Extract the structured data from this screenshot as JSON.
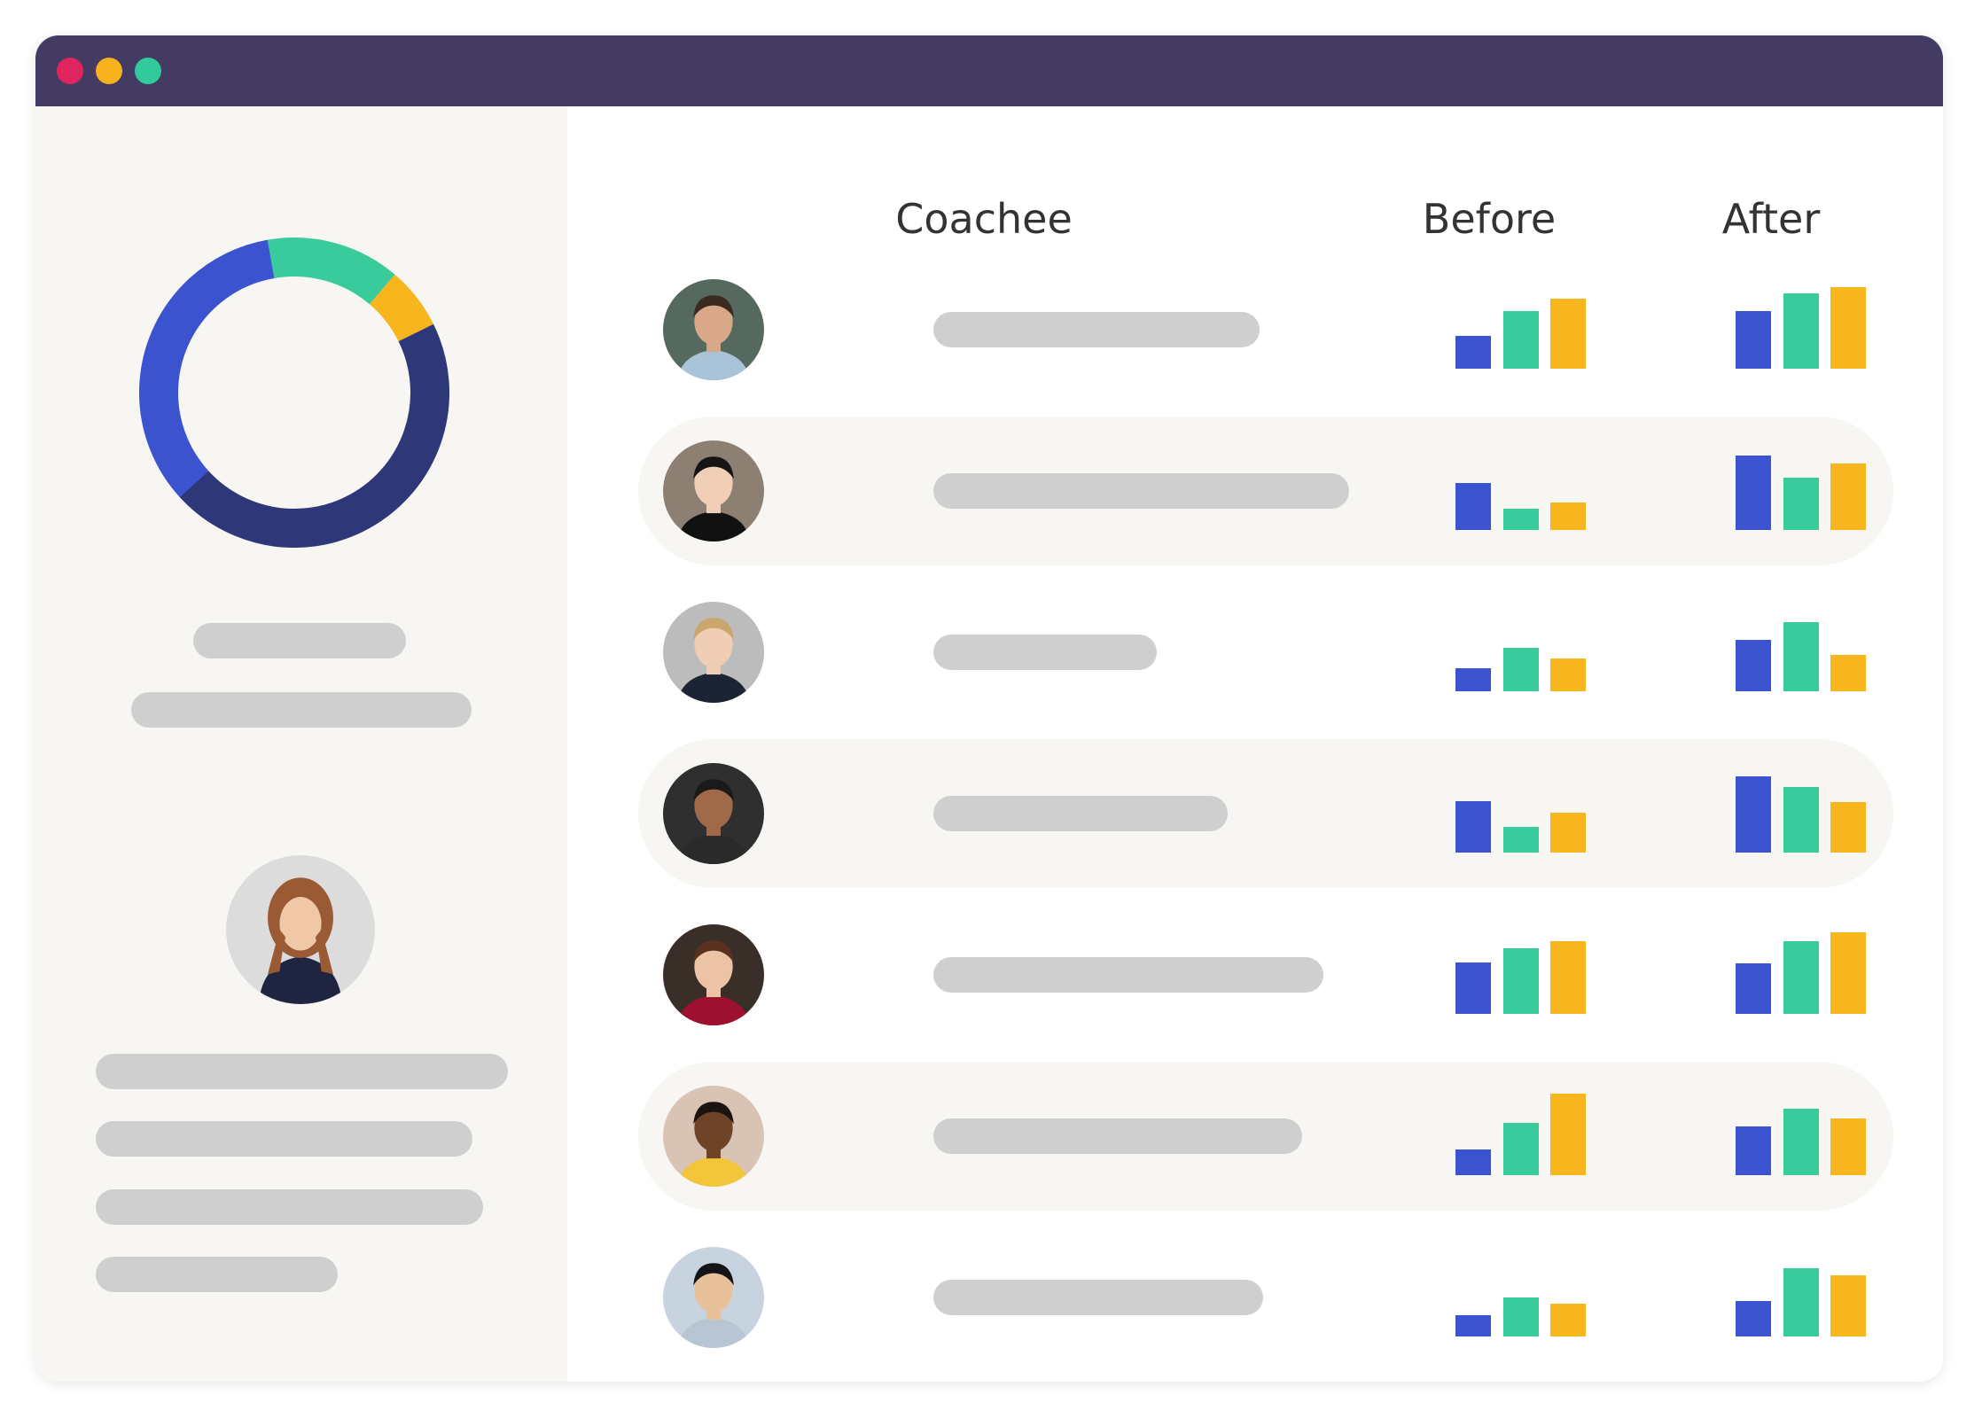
{
  "window": {
    "controls": [
      {
        "name": "close",
        "color": "#e0245e"
      },
      {
        "name": "minimize",
        "color": "#f7b21e"
      },
      {
        "name": "maximize",
        "color": "#33c99a"
      }
    ]
  },
  "colors": {
    "blue": "#3b53cf",
    "green": "#3acb9c",
    "yellow": "#f7b61e",
    "navy": "#2e3878",
    "titlebar": "#433b61",
    "skeleton": "#cfcfcf"
  },
  "table": {
    "headers": {
      "coachee": "Coachee",
      "before": "Before",
      "after": "After"
    },
    "rows": [
      {
        "avatar": "person-1",
        "highlighted": false,
        "before": [
          0.4,
          0.71,
          0.86
        ],
        "after": [
          0.71,
          0.92,
          1.0
        ]
      },
      {
        "avatar": "person-2",
        "highlighted": true,
        "before": [
          0.58,
          0.26,
          0.34
        ],
        "after": [
          0.91,
          0.64,
          0.82
        ]
      },
      {
        "avatar": "person-3",
        "highlighted": false,
        "before": [
          0.28,
          0.53,
          0.4
        ],
        "after": [
          0.63,
          0.85,
          0.45
        ]
      },
      {
        "avatar": "person-4",
        "highlighted": true,
        "before": [
          0.63,
          0.31,
          0.49
        ],
        "after": [
          0.94,
          0.8,
          0.62
        ]
      },
      {
        "avatar": "person-5",
        "highlighted": false,
        "before": [
          0.63,
          0.8,
          0.89
        ],
        "after": [
          0.62,
          0.89,
          1.0
        ]
      },
      {
        "avatar": "person-6",
        "highlighted": true,
        "before": [
          0.31,
          0.64,
          1.0
        ],
        "after": [
          0.6,
          0.82,
          0.7
        ]
      },
      {
        "avatar": "person-7",
        "highlighted": false,
        "before": [
          0.26,
          0.48,
          0.4
        ],
        "after": [
          0.44,
          0.84,
          0.75
        ]
      }
    ]
  },
  "sidebar": {
    "donut": [
      {
        "label": "green",
        "value": 0.14
      },
      {
        "label": "yellow",
        "value": 0.065
      },
      {
        "label": "navy",
        "value": 0.455
      },
      {
        "label": "blue",
        "value": 0.34
      }
    ]
  }
}
